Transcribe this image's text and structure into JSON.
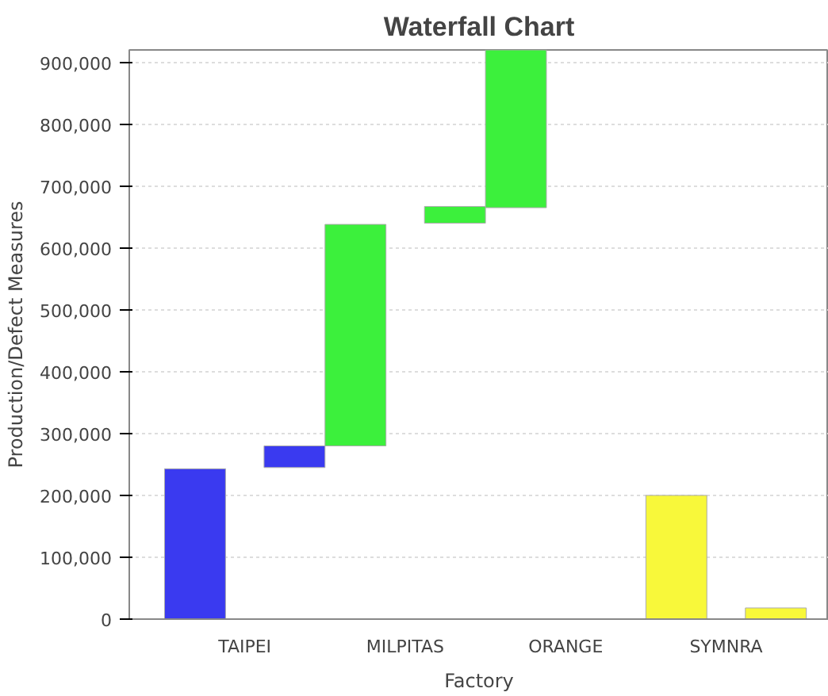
{
  "chart_data": {
    "type": "bar",
    "title": "Waterfall Chart",
    "xlabel": "Factory",
    "ylabel": "Production/Defect Measures",
    "categories": [
      "TAIPEI",
      "MILPITAS",
      "ORANGE",
      "SYMNRA"
    ],
    "series": [
      {
        "colors": [
          "#3a3af0",
          "#3cf03c",
          "#3cf03c",
          "#f8f83a"
        ],
        "values": [
          243000,
          358000,
          255000,
          200000
        ],
        "base": [
          0,
          280000,
          665000,
          0
        ]
      },
      {
        "colors": [
          "#3a3af0",
          "#3cf03c",
          null,
          "#f8f83a"
        ],
        "values": [
          35000,
          27000,
          null,
          18000
        ],
        "base": [
          245000,
          640000,
          null,
          0
        ]
      }
    ],
    "ylim": [
      0,
      920000
    ],
    "yticks": [
      {
        "value": 0,
        "label": "0"
      },
      {
        "value": 100000,
        "label": "100,000"
      },
      {
        "value": 200000,
        "label": "200,000"
      },
      {
        "value": 300000,
        "label": "300,000"
      },
      {
        "value": 400000,
        "label": "400,000"
      },
      {
        "value": 500000,
        "label": "500,000"
      },
      {
        "value": 600000,
        "label": "600,000"
      },
      {
        "value": 700000,
        "label": "700,000"
      },
      {
        "value": 800000,
        "label": "800,000"
      },
      {
        "value": 900000,
        "label": "900,000"
      }
    ],
    "grid": "y"
  }
}
